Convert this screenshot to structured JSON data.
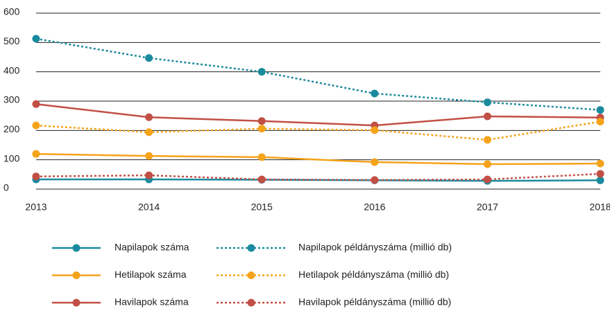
{
  "chart_data": {
    "type": "line",
    "x": [
      2013,
      2014,
      2015,
      2016,
      2017,
      2018
    ],
    "xlim": [
      2013,
      2018
    ],
    "xticks": [
      2013,
      2014,
      2015,
      2016,
      2017,
      2018
    ],
    "ylim": [
      0,
      600
    ],
    "yticks": [
      0,
      100,
      200,
      300,
      400,
      500,
      600
    ],
    "grid": true,
    "series": [
      {
        "name": "Napilapok száma",
        "color": "#1a8a9e",
        "line_style": "solid",
        "values": [
          33,
          33,
          32,
          30,
          28,
          30
        ]
      },
      {
        "name": "Hetilapok száma",
        "color": "#f5a31a",
        "line_style": "solid",
        "values": [
          120,
          113,
          109,
          92,
          85,
          87
        ]
      },
      {
        "name": "Havilapok száma",
        "color": "#c24f45",
        "line_style": "solid",
        "values": [
          290,
          245,
          232,
          217,
          248,
          244
        ]
      },
      {
        "name": "Napilapok példányszáma (millió db)",
        "color": "#1a8a9e",
        "line_style": "dotted",
        "values": [
          513,
          447,
          400,
          326,
          296,
          270
        ]
      },
      {
        "name": "Hetilapok példányszáma (millió db)",
        "color": "#f5a31a",
        "line_style": "dotted",
        "values": [
          217,
          194,
          206,
          201,
          168,
          230
        ]
      },
      {
        "name": "Havilapok példányszáma (millió db)",
        "color": "#c24f45",
        "line_style": "dotted",
        "values": [
          43,
          47,
          33,
          31,
          33,
          52
        ]
      }
    ]
  }
}
